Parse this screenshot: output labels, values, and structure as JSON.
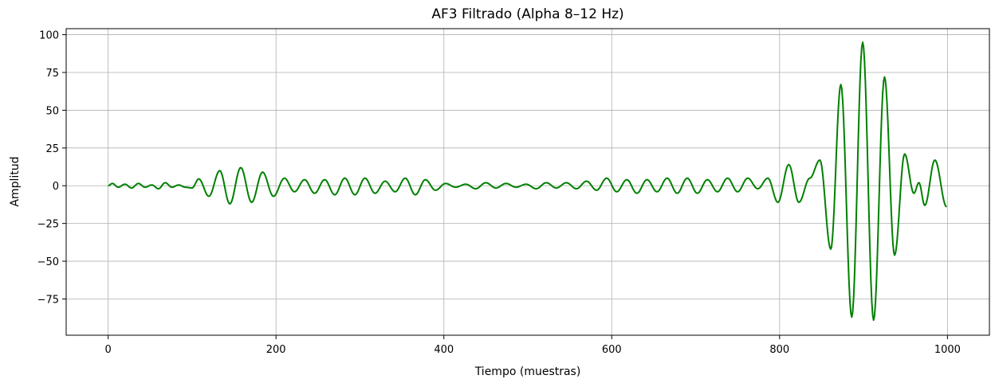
{
  "chart_data": {
    "type": "line",
    "title": "AF3 Filtrado (Alpha 8–12 Hz)",
    "xlabel": "Tiempo (muestras)",
    "ylabel": "Amplitud",
    "xlim": [
      -50,
      1050
    ],
    "ylim": [
      -99,
      104
    ],
    "xticks": [
      0,
      200,
      400,
      600,
      800,
      1000
    ],
    "xtick_labels": [
      "0",
      "200",
      "400",
      "600",
      "800",
      "1000"
    ],
    "yticks": [
      -75,
      -50,
      -25,
      0,
      25,
      50,
      75,
      100
    ],
    "ytick_labels": [
      "−75",
      "−50",
      "−25",
      "0",
      "25",
      "50",
      "75",
      "100"
    ],
    "grid": true,
    "series": [
      {
        "color": "#008000",
        "extrema": [
          [
            0,
            0
          ],
          [
            5,
            1.5
          ],
          [
            12,
            -1
          ],
          [
            20,
            1
          ],
          [
            28,
            -1.5
          ],
          [
            36,
            1.5
          ],
          [
            44,
            -1
          ],
          [
            52,
            0.5
          ],
          [
            60,
            -2
          ],
          [
            68,
            2
          ],
          [
            76,
            -1
          ],
          [
            84,
            0.5
          ],
          [
            92,
            -1
          ],
          [
            100,
            -1.5
          ],
          [
            108,
            4.5
          ],
          [
            120,
            -7
          ],
          [
            133,
            10
          ],
          [
            145,
            -12
          ],
          [
            158,
            12
          ],
          [
            171,
            -11
          ],
          [
            184,
            9
          ],
          [
            197,
            -7
          ],
          [
            210,
            5
          ],
          [
            222,
            -4
          ],
          [
            234,
            4
          ],
          [
            246,
            -5
          ],
          [
            258,
            4
          ],
          [
            270,
            -6
          ],
          [
            282,
            5
          ],
          [
            294,
            -6
          ],
          [
            306,
            5
          ],
          [
            318,
            -5
          ],
          [
            330,
            3
          ],
          [
            342,
            -4
          ],
          [
            354,
            5
          ],
          [
            366,
            -6
          ],
          [
            378,
            4
          ],
          [
            390,
            -3
          ],
          [
            402,
            1.5
          ],
          [
            414,
            -1
          ],
          [
            426,
            1
          ],
          [
            438,
            -2
          ],
          [
            450,
            2
          ],
          [
            462,
            -1.5
          ],
          [
            474,
            1.5
          ],
          [
            486,
            -1
          ],
          [
            498,
            1
          ],
          [
            510,
            -2
          ],
          [
            522,
            2
          ],
          [
            534,
            -1.5
          ],
          [
            546,
            2
          ],
          [
            558,
            -2
          ],
          [
            570,
            3
          ],
          [
            582,
            -3
          ],
          [
            594,
            5
          ],
          [
            606,
            -4
          ],
          [
            618,
            4
          ],
          [
            630,
            -5
          ],
          [
            642,
            4
          ],
          [
            654,
            -4
          ],
          [
            666,
            5
          ],
          [
            678,
            -5
          ],
          [
            690,
            5
          ],
          [
            702,
            -5
          ],
          [
            714,
            4
          ],
          [
            726,
            -4
          ],
          [
            738,
            5
          ],
          [
            750,
            -4
          ],
          [
            762,
            5
          ],
          [
            774,
            -2
          ],
          [
            786,
            5
          ],
          [
            798,
            -11
          ],
          [
            811,
            14
          ],
          [
            823,
            -11
          ],
          [
            836,
            5
          ],
          [
            848,
            17
          ],
          [
            861,
            -42
          ],
          [
            873,
            67
          ],
          [
            886,
            -87
          ],
          [
            899,
            95
          ],
          [
            912,
            -89
          ],
          [
            925,
            72
          ],
          [
            937,
            -46
          ],
          [
            949,
            21
          ],
          [
            960,
            -5
          ],
          [
            966,
            2
          ],
          [
            973,
            -13
          ],
          [
            985,
            17
          ],
          [
            999,
            -14
          ]
        ]
      }
    ]
  }
}
